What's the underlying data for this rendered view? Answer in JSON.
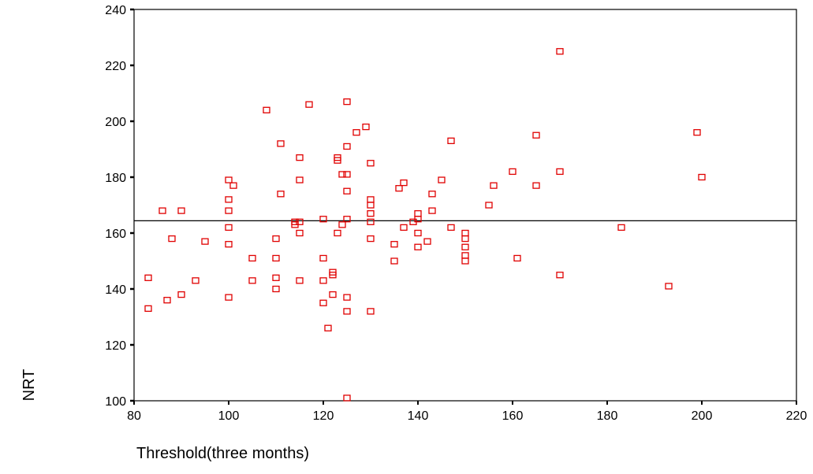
{
  "chart_data": {
    "type": "scatter",
    "xlabel": "Threshold(three months)",
    "ylabel": "NRT",
    "xlim": [
      80,
      220
    ],
    "ylim": [
      100,
      240
    ],
    "xticks": [
      "80",
      "100",
      "120",
      "140",
      "160",
      "180",
      "200",
      "220"
    ],
    "yticks": [
      "100",
      "120",
      "140",
      "160",
      "180",
      "200",
      "220",
      "240"
    ],
    "grid": false,
    "reference_line": {
      "y": 164.4
    },
    "marker_color": "#e00000",
    "points": [
      [
        83,
        144
      ],
      [
        83,
        133
      ],
      [
        86,
        168
      ],
      [
        87,
        136
      ],
      [
        88,
        158
      ],
      [
        90,
        168
      ],
      [
        90,
        138
      ],
      [
        93,
        143
      ],
      [
        95,
        157
      ],
      [
        100,
        179
      ],
      [
        100,
        172
      ],
      [
        100,
        168
      ],
      [
        100,
        162
      ],
      [
        100,
        156
      ],
      [
        100,
        137
      ],
      [
        101,
        177
      ],
      [
        105,
        151
      ],
      [
        105,
        143
      ],
      [
        108,
        204
      ],
      [
        110,
        158
      ],
      [
        110,
        151
      ],
      [
        110,
        144
      ],
      [
        110,
        140
      ],
      [
        111,
        192
      ],
      [
        111,
        174
      ],
      [
        114,
        164
      ],
      [
        114,
        163
      ],
      [
        115,
        187
      ],
      [
        115,
        179
      ],
      [
        115,
        164
      ],
      [
        115,
        160
      ],
      [
        115,
        143
      ],
      [
        117,
        206
      ],
      [
        120,
        165
      ],
      [
        120,
        151
      ],
      [
        120,
        143
      ],
      [
        120,
        135
      ],
      [
        121,
        126
      ],
      [
        122,
        146
      ],
      [
        122,
        145
      ],
      [
        122,
        138
      ],
      [
        123,
        187
      ],
      [
        123,
        186
      ],
      [
        123,
        160
      ],
      [
        124,
        181
      ],
      [
        124,
        163
      ],
      [
        125,
        207
      ],
      [
        125,
        191
      ],
      [
        125,
        181
      ],
      [
        125,
        175
      ],
      [
        125,
        165
      ],
      [
        125,
        137
      ],
      [
        125,
        132
      ],
      [
        125,
        101
      ],
      [
        127,
        196
      ],
      [
        129,
        198
      ],
      [
        130,
        185
      ],
      [
        130,
        172
      ],
      [
        130,
        170
      ],
      [
        130,
        167
      ],
      [
        130,
        164
      ],
      [
        130,
        158
      ],
      [
        130,
        132
      ],
      [
        135,
        156
      ],
      [
        135,
        150
      ],
      [
        136,
        176
      ],
      [
        137,
        178
      ],
      [
        137,
        162
      ],
      [
        139,
        164
      ],
      [
        140,
        167
      ],
      [
        140,
        165
      ],
      [
        140,
        160
      ],
      [
        140,
        155
      ],
      [
        142,
        157
      ],
      [
        143,
        174
      ],
      [
        143,
        168
      ],
      [
        145,
        179
      ],
      [
        147,
        193
      ],
      [
        147,
        162
      ],
      [
        150,
        160
      ],
      [
        150,
        158
      ],
      [
        150,
        155
      ],
      [
        150,
        152
      ],
      [
        150,
        150
      ],
      [
        155,
        170
      ],
      [
        156,
        177
      ],
      [
        160,
        182
      ],
      [
        161,
        151
      ],
      [
        165,
        195
      ],
      [
        165,
        177
      ],
      [
        170,
        225
      ],
      [
        170,
        182
      ],
      [
        170,
        145
      ],
      [
        183,
        162
      ],
      [
        193,
        141
      ],
      [
        199,
        196
      ],
      [
        200,
        180
      ]
    ]
  }
}
